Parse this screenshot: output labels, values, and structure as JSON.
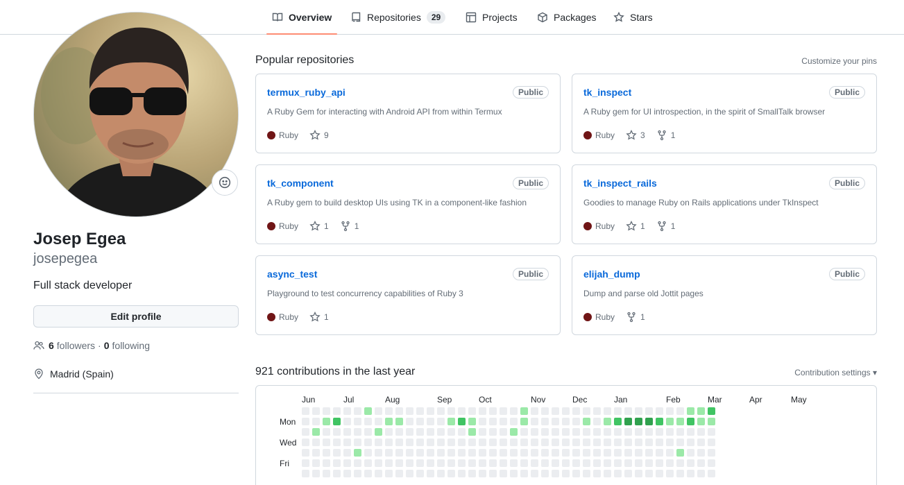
{
  "tabs": [
    {
      "label": "Overview",
      "active": true,
      "icon": "book-icon"
    },
    {
      "label": "Repositories",
      "count": "29",
      "icon": "repo-icon"
    },
    {
      "label": "Projects",
      "icon": "table-icon"
    },
    {
      "label": "Packages",
      "icon": "package-icon"
    },
    {
      "label": "Stars",
      "icon": "star-icon"
    }
  ],
  "profile": {
    "name": "Josep Egea",
    "login": "josepegea",
    "bio": "Full stack developer",
    "edit_label": "Edit profile",
    "followers_count": "6",
    "followers_label": "followers",
    "separator": "·",
    "following_count": "0",
    "following_label": "following",
    "location": "Madrid (Spain)"
  },
  "pinned": {
    "title": "Popular repositories",
    "customize_label": "Customize your pins",
    "repos": [
      {
        "name": "termux_ruby_api",
        "badge": "Public",
        "desc": "A Ruby Gem for interacting with Android API from within Termux",
        "lang": "Ruby",
        "lang_color": "#701516",
        "stars": "9",
        "forks": ""
      },
      {
        "name": "tk_inspect",
        "badge": "Public",
        "desc": "A Ruby gem for UI introspection, in the spirit of SmallTalk browser",
        "lang": "Ruby",
        "lang_color": "#701516",
        "stars": "3",
        "forks": "1"
      },
      {
        "name": "tk_component",
        "badge": "Public",
        "desc": "A Ruby gem to build desktop UIs using TK in a component-like fashion",
        "lang": "Ruby",
        "lang_color": "#701516",
        "stars": "1",
        "forks": "1"
      },
      {
        "name": "tk_inspect_rails",
        "badge": "Public",
        "desc": "Goodies to manage Ruby on Rails applications under TkInspect",
        "lang": "Ruby",
        "lang_color": "#701516",
        "stars": "1",
        "forks": "1"
      },
      {
        "name": "async_test",
        "badge": "Public",
        "desc": "Playground to test concurrency capabilities of Ruby 3",
        "lang": "Ruby",
        "lang_color": "#701516",
        "stars": "1",
        "forks": ""
      },
      {
        "name": "elijah_dump",
        "badge": "Public",
        "desc": "Dump and parse old Jottit pages",
        "lang": "Ruby",
        "lang_color": "#701516",
        "stars": "",
        "forks": "1"
      }
    ]
  },
  "contributions": {
    "title": "921 contributions in the last year",
    "settings_label": "Contribution settings ▾",
    "months": [
      "Jun",
      "Jul",
      "Aug",
      "Sep",
      "Oct",
      "Nov",
      "Dec",
      "Jan",
      "Feb",
      "Mar",
      "Apr",
      "May"
    ],
    "days": [
      "Mon",
      "Wed",
      "Fri"
    ],
    "colors": [
      "#ebedf0",
      "#9be9a8",
      "#40c463",
      "#30a14e",
      "#216e39"
    ],
    "levels": [
      "0000001000000000000001000000000000000112",
      "0012000011000012100001000001012333211211",
      "0100000100000000100010000000000000000000",
      "0000000000000000000000000000000000000000",
      "0000010000000000000000000000000000001000",
      "0000000000000000000000000000000000000000",
      "0000000000000000000000000000000000000000"
    ]
  }
}
